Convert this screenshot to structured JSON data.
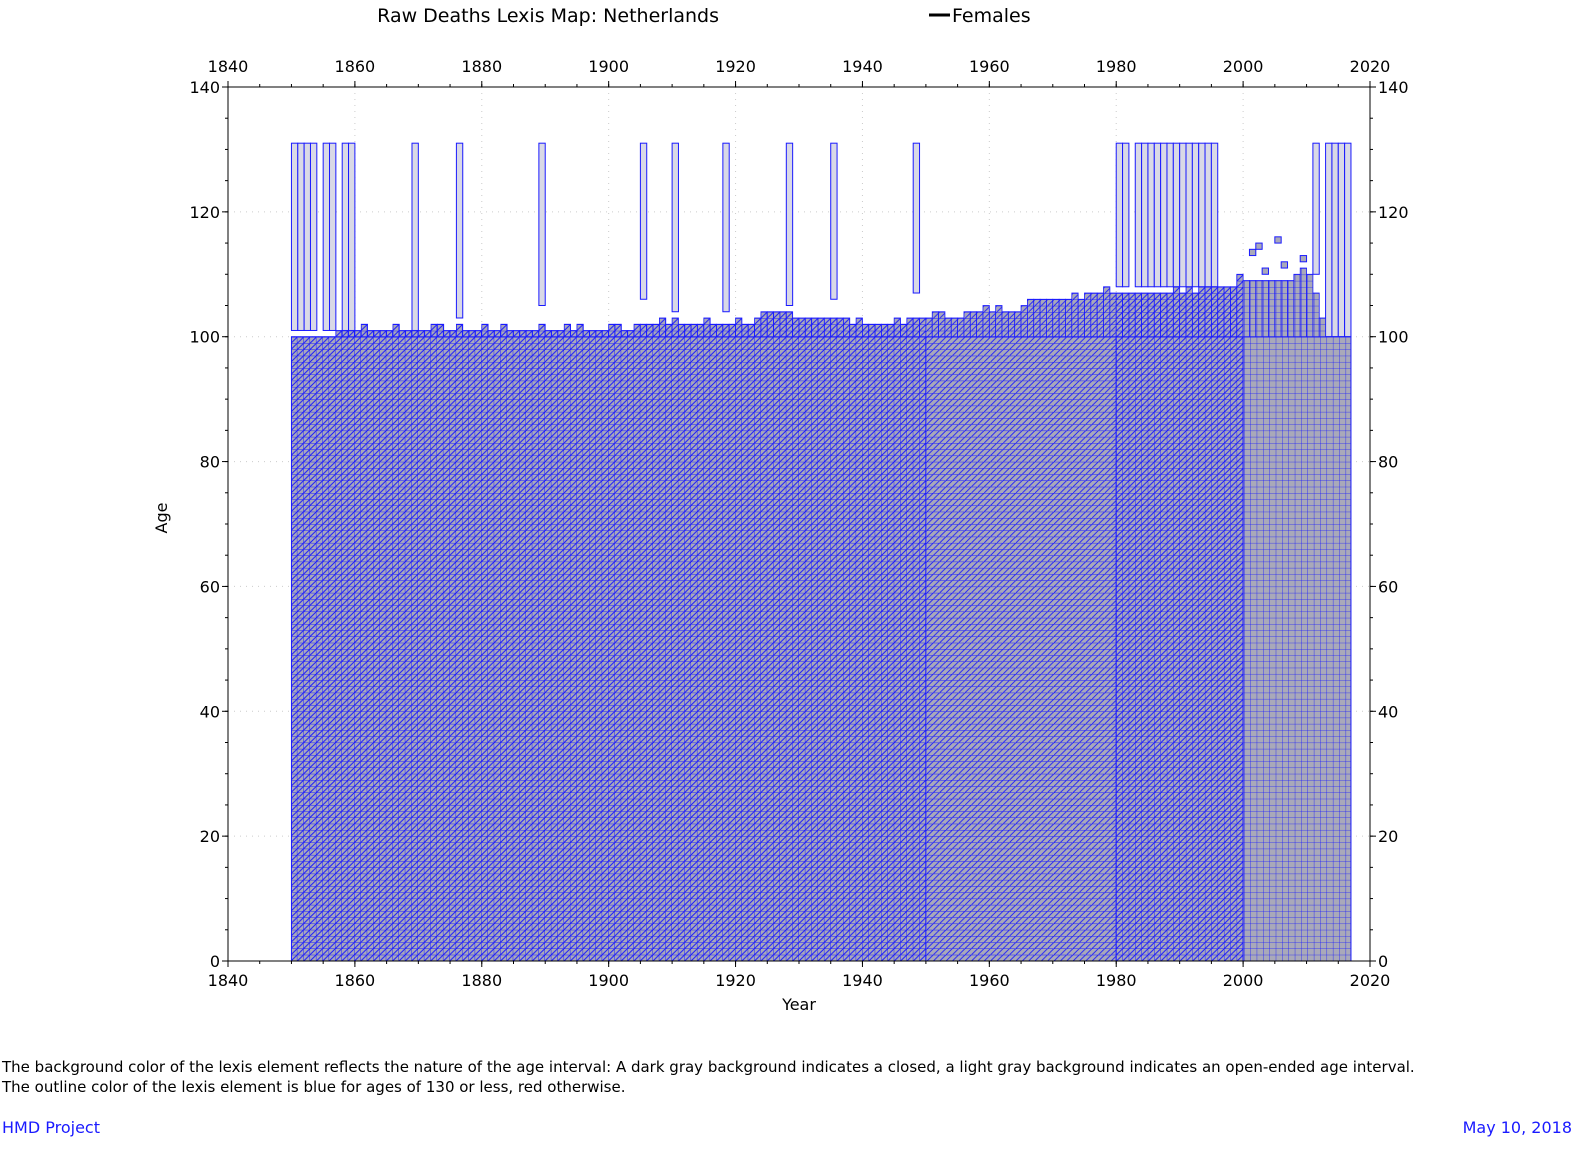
{
  "colors": {
    "closed_bg": "#a9a9b9",
    "open_bg": "#d9d9e6",
    "outline_blue": "#1a1aff",
    "outline_red": "#ff0000",
    "axis": "#000000"
  },
  "chart_data": {
    "type": "heatmap",
    "title": "Raw Deaths Lexis Map: Netherlands",
    "legend": {
      "label": "Females",
      "placement": "top-center"
    },
    "xlabel": "Year",
    "ylabel": "Age",
    "xlim": [
      1840,
      2020
    ],
    "ylim": [
      0,
      140
    ],
    "x_ticks": [
      "1840",
      "1860",
      "1880",
      "1900",
      "1920",
      "1940",
      "1960",
      "1980",
      "2000",
      "2020"
    ],
    "y_ticks": [
      "0",
      "20",
      "40",
      "60",
      "80",
      "100",
      "120",
      "140"
    ],
    "grid": true,
    "open_interval_top_age": 131,
    "periods": [
      {
        "from": 1850,
        "to": 1950,
        "ages": [
          0,
          100
        ],
        "grid": "lexis-triangles",
        "background": "closed"
      },
      {
        "from": 1950,
        "to": 1980,
        "ages": [
          0,
          100
        ],
        "grid": "cohort-parallelograms",
        "background": "closed"
      },
      {
        "from": 1980,
        "to": 2000,
        "ages": [
          0,
          100
        ],
        "grid": "lexis-triangles",
        "background": "closed"
      },
      {
        "from": 2000,
        "to": 2017,
        "ages": [
          0,
          100
        ],
        "grid": "age-period-squares",
        "background": "closed"
      }
    ],
    "open_interval_years": [
      {
        "from": 1850,
        "to": 1854,
        "min_age": 101
      },
      {
        "from": 1855,
        "to": 1857,
        "min_age": 101
      },
      {
        "from": 1858,
        "to": 1860,
        "min_age": 101
      },
      {
        "from": 1869,
        "to": 1870,
        "min_age": 101
      },
      {
        "from": 1876,
        "to": 1877,
        "min_age": 103
      },
      {
        "from": 1889,
        "to": 1890,
        "min_age": 105
      },
      {
        "from": 1905,
        "to": 1906,
        "min_age": 106
      },
      {
        "from": 1910,
        "to": 1911,
        "min_age": 104
      },
      {
        "from": 1918,
        "to": 1919,
        "min_age": 104
      },
      {
        "from": 1928,
        "to": 1929,
        "min_age": 105
      },
      {
        "from": 1935,
        "to": 1936,
        "min_age": 106
      },
      {
        "from": 1948,
        "to": 1949,
        "min_age": 107
      },
      {
        "from": 1980,
        "to": 1982,
        "min_age": 108
      },
      {
        "from": 1983,
        "to": 1996,
        "min_age": 108
      },
      {
        "from": 2011,
        "to": 2012,
        "min_age": 110
      },
      {
        "from": 2013,
        "to": 2017,
        "min_age": 100
      }
    ],
    "max_closed_age_by_year": [
      [
        1850,
        100
      ],
      [
        1855,
        100
      ],
      [
        1860,
        101
      ],
      [
        1865,
        101
      ],
      [
        1870,
        101
      ],
      [
        1875,
        101
      ],
      [
        1880,
        101
      ],
      [
        1885,
        101
      ],
      [
        1890,
        101
      ],
      [
        1895,
        101
      ],
      [
        1900,
        101
      ],
      [
        1905,
        102
      ],
      [
        1910,
        102
      ],
      [
        1915,
        102
      ],
      [
        1920,
        102
      ],
      [
        1925,
        103
      ],
      [
        1930,
        103
      ],
      [
        1935,
        103
      ],
      [
        1940,
        102
      ],
      [
        1945,
        102
      ],
      [
        1950,
        103
      ],
      [
        1955,
        103
      ],
      [
        1960,
        104
      ],
      [
        1965,
        105
      ],
      [
        1970,
        106
      ],
      [
        1975,
        107
      ],
      [
        1980,
        107
      ],
      [
        1985,
        107
      ],
      [
        1990,
        107
      ],
      [
        1995,
        108
      ],
      [
        2000,
        109
      ],
      [
        2005,
        109
      ],
      [
        2010,
        110
      ],
      [
        2013,
        100
      ],
      [
        2017,
        100
      ]
    ]
  },
  "footnote": {
    "line1": "The background color of the lexis element reflects the nature of the age interval: A dark gray background indicates a closed, a light gray background indicates an open-ended age interval.",
    "line2": "The outline color of the lexis element is blue for ages of 130 or less, red otherwise."
  },
  "footer": {
    "left": "HMD Project",
    "right": "May 10, 2018"
  }
}
